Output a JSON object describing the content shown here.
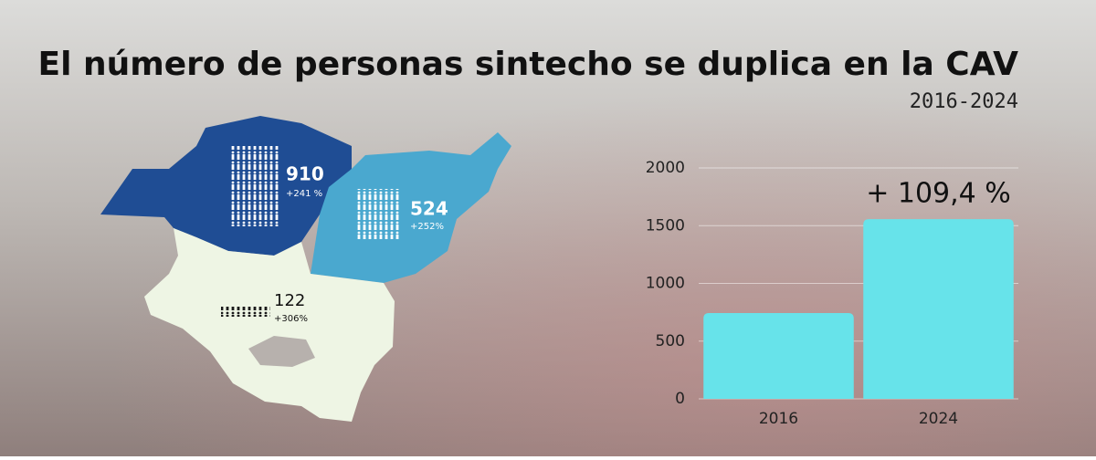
{
  "chart_data": {
    "type": "bar",
    "title": "El número de personas sintecho se duplica en la CAV",
    "subtitle": "2016-2024",
    "categories": [
      "2016",
      "2024"
    ],
    "values": [
      743,
      1556
    ],
    "color": "#67e3ea",
    "ylim": [
      0,
      2000
    ],
    "yticks": [
      0,
      500,
      1000,
      1500,
      2000
    ],
    "grid": true,
    "annotation": "+ 109,4 %"
  },
  "map": {
    "regions": [
      {
        "value": 910,
        "change": "+241 %",
        "color": "#1f4d94"
      },
      {
        "value": 524,
        "change": "+252%",
        "color": "#4aa8cf"
      },
      {
        "value": 122,
        "change": "+306%",
        "color": "#eef5e4"
      }
    ]
  }
}
